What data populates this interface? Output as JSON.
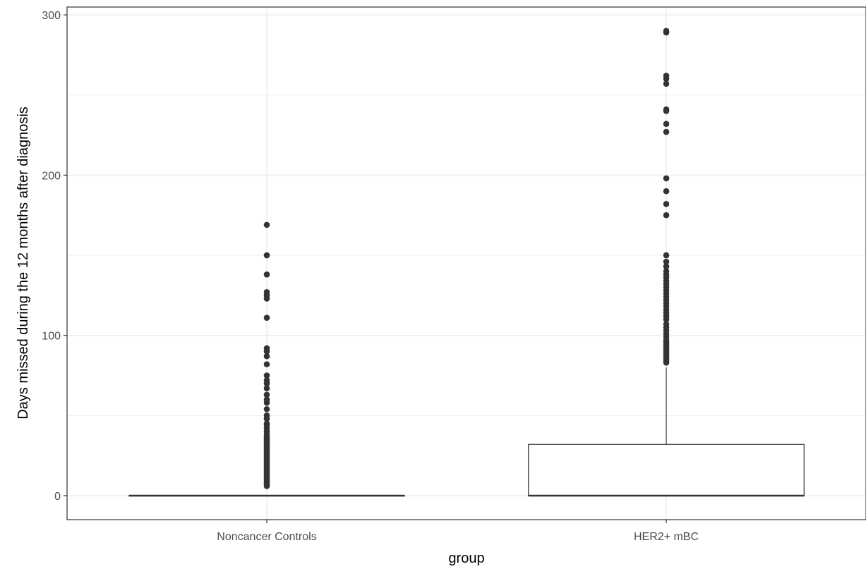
{
  "chart_data": {
    "type": "boxplot",
    "xlabel": "group",
    "ylabel": "Days missed during the 12 months after diagnosis",
    "ylim": [
      -15,
      302
    ],
    "yticks": [
      0,
      100,
      200,
      300
    ],
    "categories": [
      "Noncancer Controls",
      "HER2+ mBC"
    ],
    "grid": true,
    "boxes": [
      {
        "name": "Noncancer Controls",
        "min": 0,
        "q1": 0,
        "median": 0,
        "q3": 0,
        "max": 0,
        "outliers": [
          6,
          7,
          8,
          9,
          10,
          11,
          12,
          13,
          14,
          15,
          16,
          17,
          18,
          19,
          20,
          21,
          22,
          23,
          24,
          25,
          26,
          27,
          28,
          29,
          30,
          31,
          32,
          33,
          34,
          35,
          36,
          37,
          38,
          40,
          42,
          44,
          45,
          48,
          50,
          54,
          58,
          60,
          63,
          67,
          70,
          72,
          75,
          82,
          87,
          90,
          92,
          111,
          123,
          125,
          127,
          138,
          150,
          169
        ]
      },
      {
        "name": "HER2+ mBC",
        "min": 0,
        "q1": 0,
        "median": 0,
        "q3": 32,
        "max": 80,
        "outliers": [
          83,
          84,
          85,
          86,
          87,
          88,
          89,
          90,
          91,
          92,
          93,
          94,
          95,
          96,
          97,
          99,
          101,
          103,
          105,
          107,
          110,
          112,
          114,
          116,
          118,
          120,
          122,
          124,
          126,
          128,
          130,
          132,
          134,
          136,
          138,
          140,
          143,
          146,
          150,
          175,
          182,
          190,
          198,
          227,
          232,
          240,
          241,
          257,
          260,
          262,
          289,
          290
        ]
      }
    ]
  }
}
